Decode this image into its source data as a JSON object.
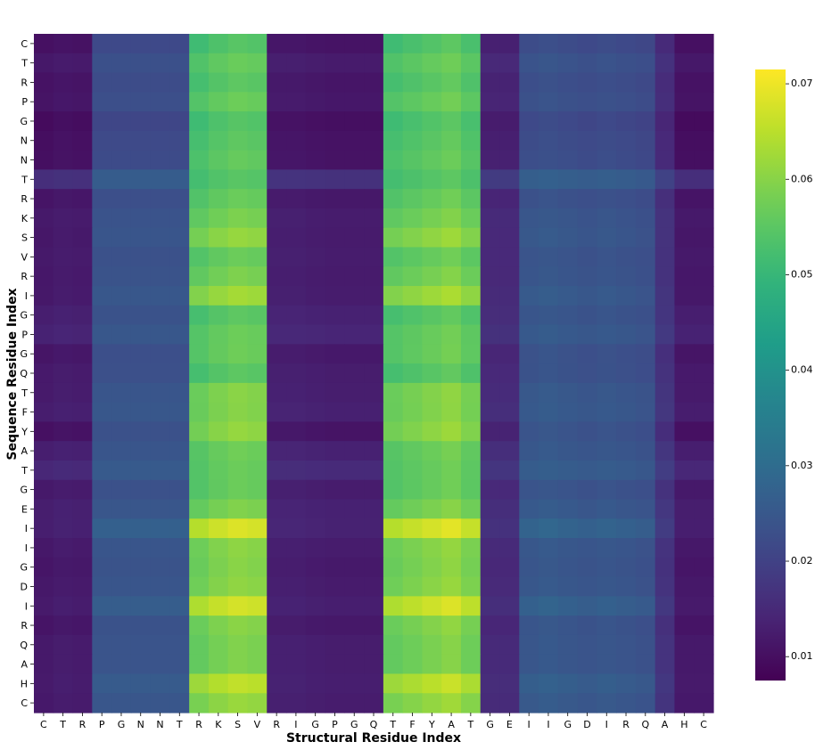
{
  "chart_data": {
    "type": "heatmap",
    "title": "",
    "xlabel": "Structural Residue Index",
    "ylabel": "Sequence Residue Index",
    "x_tick_labels": [
      "C",
      "T",
      "R",
      "P",
      "G",
      "N",
      "N",
      "T",
      "R",
      "K",
      "S",
      "V",
      "R",
      "I",
      "G",
      "P",
      "G",
      "Q",
      "T",
      "F",
      "Y",
      "A",
      "T",
      "G",
      "E",
      "I",
      "I",
      "G",
      "D",
      "I",
      "R",
      "Q",
      "A",
      "H",
      "C"
    ],
    "y_tick_labels": [
      "C",
      "T",
      "R",
      "P",
      "G",
      "N",
      "N",
      "T",
      "R",
      "K",
      "S",
      "V",
      "R",
      "I",
      "G",
      "P",
      "G",
      "Q",
      "T",
      "F",
      "Y",
      "A",
      "T",
      "G",
      "E",
      "I",
      "I",
      "G",
      "D",
      "I",
      "R",
      "Q",
      "A",
      "H",
      "C"
    ],
    "colormap": "viridis",
    "vmin": 0.0075,
    "vmax": 0.0715,
    "colorbar": {
      "ticks": [
        0.01,
        0.02,
        0.03,
        0.04,
        0.05,
        0.06,
        0.07
      ],
      "tick_labels": [
        "0.01",
        "0.02",
        "0.03",
        "0.04",
        "0.05",
        "0.06",
        "0.07"
      ]
    },
    "column_profile": [
      0.85,
      0.9,
      0.88,
      1.8,
      1.8,
      1.8,
      1.8,
      1.8,
      4.3,
      4.45,
      4.55,
      4.5,
      0.95,
      0.95,
      0.92,
      0.9,
      0.9,
      0.9,
      4.3,
      4.4,
      4.5,
      4.6,
      4.4,
      1.1,
      1.1,
      1.85,
      1.9,
      1.85,
      1.8,
      1.85,
      1.8,
      1.75,
      1.25,
      0.85,
      0.85
    ],
    "row_profile": [
      0.012,
      0.0122,
      0.0121,
      0.0125,
      0.0122,
      0.0123,
      0.0125,
      0.0105,
      0.0124,
      0.0127,
      0.0135,
      0.0122,
      0.0128,
      0.0138,
      0.0115,
      0.0118,
      0.0125,
      0.0117,
      0.013,
      0.0128,
      0.0138,
      0.0121,
      0.0115,
      0.0122,
      0.0126,
      0.015,
      0.0132,
      0.0132,
      0.0133,
      0.015,
      0.0133,
      0.0128,
      0.0128,
      0.0145,
      0.0135
    ],
    "row_floor": [
      0.0095,
      0.0108,
      0.0098,
      0.0098,
      0.0085,
      0.009,
      0.009,
      0.0165,
      0.01,
      0.0105,
      0.0095,
      0.011,
      0.0102,
      0.0095,
      0.0125,
      0.013,
      0.01,
      0.0115,
      0.0105,
      0.0112,
      0.008,
      0.012,
      0.0142,
      0.011,
      0.0115,
      0.0095,
      0.01,
      0.0095,
      0.0098,
      0.0088,
      0.0092,
      0.0105,
      0.0105,
      0.0092,
      0.0098
    ]
  }
}
